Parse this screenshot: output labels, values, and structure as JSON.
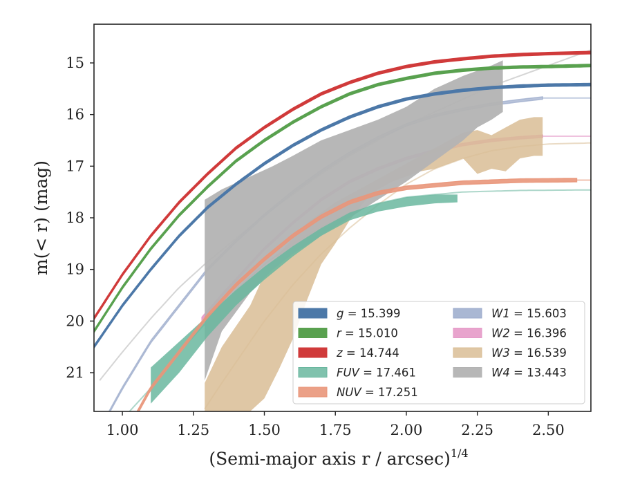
{
  "chart_data": {
    "type": "line",
    "xlabel": "(Semi-major axis r / arcsec)",
    "xlabel_sup": "1/4",
    "ylabel": "m(< r) (mag)",
    "xlim": [
      0.9,
      2.65
    ],
    "ylim": [
      21.75,
      14.25
    ],
    "y_inverted": true,
    "grid": false,
    "legend_position": "lower-right",
    "xticks": [
      1.0,
      1.25,
      1.5,
      1.75,
      2.0,
      2.25,
      2.5
    ],
    "xtick_labels": [
      "1.00",
      "1.25",
      "1.50",
      "1.75",
      "2.00",
      "2.25",
      "2.50"
    ],
    "yticks": [
      15,
      16,
      17,
      18,
      19,
      20,
      21
    ],
    "ytick_labels": [
      "15",
      "16",
      "17",
      "18",
      "19",
      "20",
      "21"
    ],
    "series": [
      {
        "name": "g = 15.399",
        "band": "g",
        "mag": 15.399,
        "color": "#4c78a8",
        "alpha": 1.0,
        "band_width": 0.05,
        "x_extent": [
          0.9,
          2.65
        ],
        "curve": {
          "x": [
            0.9,
            1.0,
            1.1,
            1.2,
            1.3,
            1.4,
            1.5,
            1.6,
            1.7,
            1.8,
            1.9,
            2.0,
            2.1,
            2.2,
            2.3,
            2.4,
            2.5,
            2.65
          ],
          "y": [
            20.5,
            19.7,
            19.0,
            18.35,
            17.8,
            17.35,
            16.95,
            16.6,
            16.3,
            16.05,
            15.85,
            15.7,
            15.6,
            15.53,
            15.48,
            15.45,
            15.43,
            15.42
          ]
        }
      },
      {
        "name": "r = 15.010",
        "band": "r",
        "mag": 15.01,
        "color": "#59a14f",
        "alpha": 1.0,
        "band_width": 0.05,
        "x_extent": [
          0.9,
          2.65
        ],
        "curve": {
          "x": [
            0.9,
            1.0,
            1.1,
            1.2,
            1.3,
            1.4,
            1.5,
            1.6,
            1.7,
            1.8,
            1.9,
            2.0,
            2.1,
            2.2,
            2.3,
            2.4,
            2.5,
            2.65
          ],
          "y": [
            20.2,
            19.35,
            18.6,
            17.95,
            17.4,
            16.9,
            16.5,
            16.15,
            15.85,
            15.6,
            15.42,
            15.3,
            15.2,
            15.14,
            15.1,
            15.08,
            15.07,
            15.05
          ]
        }
      },
      {
        "name": "z = 14.744",
        "band": "z",
        "mag": 14.744,
        "color": "#d03a3a",
        "alpha": 1.0,
        "band_width": 0.05,
        "x_extent": [
          0.9,
          2.65
        ],
        "curve": {
          "x": [
            0.9,
            1.0,
            1.1,
            1.2,
            1.3,
            1.4,
            1.5,
            1.6,
            1.7,
            1.8,
            1.9,
            2.0,
            2.1,
            2.2,
            2.3,
            2.4,
            2.5,
            2.65
          ],
          "y": [
            19.95,
            19.1,
            18.35,
            17.7,
            17.15,
            16.65,
            16.25,
            15.9,
            15.6,
            15.38,
            15.2,
            15.07,
            14.98,
            14.92,
            14.87,
            14.84,
            14.82,
            14.8
          ]
        }
      },
      {
        "name": "FUV = 17.461",
        "band": "FUV",
        "mag": 17.461,
        "color": "#6ab79f",
        "alpha": 0.85,
        "x": [
          1.1,
          1.2,
          1.3,
          1.4,
          1.5,
          1.6,
          1.7,
          1.8,
          1.9,
          2.0,
          2.1,
          2.18
        ],
        "y_upper": [
          20.9,
          20.4,
          19.9,
          19.4,
          18.95,
          18.55,
          18.2,
          17.9,
          17.72,
          17.6,
          17.55,
          17.55
        ],
        "y_lower": [
          21.6,
          21.0,
          20.3,
          19.7,
          19.2,
          18.75,
          18.35,
          18.05,
          17.88,
          17.78,
          17.72,
          17.7
        ],
        "curve": {
          "x": [
            1.0,
            1.1,
            1.2,
            1.3,
            1.4,
            1.5,
            1.6,
            1.7,
            1.8,
            1.9,
            2.0,
            2.2,
            2.4,
            2.65
          ],
          "y": [
            21.9,
            21.3,
            20.6,
            20.0,
            19.4,
            18.9,
            18.5,
            18.18,
            17.9,
            17.72,
            17.6,
            17.5,
            17.47,
            17.46
          ]
        }
      },
      {
        "name": "NUV = 17.251",
        "band": "NUV",
        "mag": 17.251,
        "color": "#e9967a",
        "alpha": 0.9,
        "band_width": 0.07,
        "x_extent": [
          1.05,
          2.6
        ],
        "curve": {
          "x": [
            1.05,
            1.1,
            1.2,
            1.3,
            1.4,
            1.5,
            1.6,
            1.7,
            1.8,
            1.9,
            2.0,
            2.2,
            2.4,
            2.6
          ],
          "y": [
            21.8,
            21.3,
            20.6,
            19.9,
            19.3,
            18.8,
            18.35,
            17.98,
            17.7,
            17.52,
            17.42,
            17.32,
            17.28,
            17.27
          ]
        },
        "ghost_extent": [
          2.6,
          2.65
        ]
      },
      {
        "name": "W1 = 15.603",
        "band": "W1",
        "mag": 15.603,
        "color": "#9aaacb",
        "alpha": 0.7,
        "band_width": 0.05,
        "x_extent": [
          0.95,
          2.48
        ],
        "curve": {
          "x": [
            0.95,
            1.0,
            1.1,
            1.2,
            1.3,
            1.4,
            1.5,
            1.6,
            1.7,
            1.8,
            1.9,
            2.0,
            2.1,
            2.2,
            2.3,
            2.4,
            2.48
          ],
          "y": [
            21.8,
            21.3,
            20.4,
            19.7,
            19.0,
            18.45,
            17.95,
            17.5,
            17.1,
            16.75,
            16.45,
            16.2,
            16.02,
            15.9,
            15.8,
            15.73,
            15.68
          ]
        },
        "ghost_extent": [
          2.48,
          2.65
        ]
      },
      {
        "name": "W2 = 16.396",
        "band": "W2",
        "mag": 16.396,
        "color": "#e59ac8",
        "alpha": 0.9,
        "band_width": 0.05,
        "x_extent": [
          1.28,
          2.48
        ],
        "curve": {
          "x": [
            1.28,
            1.35,
            1.4,
            1.5,
            1.6,
            1.7,
            1.8,
            1.9,
            2.0,
            2.1,
            2.2,
            2.3,
            2.4,
            2.48
          ],
          "y": [
            19.95,
            19.5,
            19.2,
            18.6,
            18.1,
            17.65,
            17.3,
            17.05,
            16.85,
            16.7,
            16.58,
            16.5,
            16.45,
            16.42
          ]
        },
        "ghost_extent": [
          2.48,
          2.65
        ]
      },
      {
        "name": "W3 = 16.539",
        "band": "W3",
        "mag": 16.539,
        "color": "#d9bd95",
        "alpha": 0.85,
        "x": [
          1.29,
          1.35,
          1.45,
          1.5,
          1.55,
          1.6,
          1.65,
          1.7,
          1.75,
          1.8,
          1.85,
          1.9,
          1.95,
          2.0,
          2.05,
          2.1,
          2.15,
          2.2,
          2.25,
          2.3,
          2.35,
          2.4,
          2.45,
          2.48
        ],
        "y_upper": [
          21.2,
          20.5,
          19.7,
          19.1,
          18.7,
          18.4,
          18.1,
          17.9,
          17.7,
          17.55,
          17.4,
          17.25,
          17.1,
          16.95,
          16.8,
          16.65,
          16.5,
          16.35,
          16.3,
          16.4,
          16.25,
          16.1,
          16.05,
          16.05
        ],
        "y_lower": [
          21.75,
          21.75,
          21.75,
          21.5,
          20.95,
          20.35,
          19.6,
          18.9,
          18.5,
          18.05,
          17.7,
          17.45,
          17.3,
          17.2,
          17.1,
          17.05,
          16.95,
          16.85,
          17.15,
          17.05,
          17.1,
          16.85,
          16.8,
          16.8
        ],
        "curve": {
          "x": [
            1.29,
            1.35,
            1.4,
            1.5,
            1.6,
            1.7,
            1.8,
            1.9,
            2.0,
            2.1,
            2.2,
            2.3,
            2.4,
            2.5,
            2.65
          ],
          "y": [
            21.7,
            21.2,
            20.8,
            20.0,
            19.3,
            18.7,
            18.2,
            17.75,
            17.35,
            17.05,
            16.85,
            16.7,
            16.62,
            16.57,
            16.55
          ]
        }
      },
      {
        "name": "W4 = 13.443",
        "band": "W4",
        "mag": 13.443,
        "color": "#b3b3b3",
        "alpha": 0.95,
        "x": [
          1.29,
          1.35,
          1.45,
          1.53,
          1.6,
          1.7,
          1.8,
          1.9,
          2.0,
          2.1,
          2.2,
          2.25,
          2.3,
          2.34
        ],
        "y_upper": [
          17.65,
          17.45,
          17.2,
          17.0,
          16.8,
          16.5,
          16.3,
          16.1,
          15.85,
          15.5,
          15.25,
          15.15,
          15.05,
          14.95
        ],
        "y_lower": [
          21.15,
          20.2,
          19.45,
          19.0,
          18.7,
          18.35,
          18.0,
          17.65,
          17.3,
          16.9,
          16.5,
          16.25,
          16.1,
          15.95
        ],
        "curve": {
          "x": [
            0.92,
            1.0,
            1.1,
            1.2,
            1.3,
            1.4,
            1.5,
            1.6,
            1.7,
            1.8,
            1.9,
            2.0,
            2.1,
            2.2,
            2.3,
            2.4,
            2.5,
            2.65
          ],
          "y": [
            21.15,
            20.6,
            19.95,
            19.35,
            18.85,
            18.4,
            17.95,
            17.55,
            17.15,
            16.8,
            16.5,
            16.2,
            15.95,
            15.7,
            15.45,
            15.25,
            15.05,
            14.75
          ]
        }
      }
    ]
  },
  "legend": [
    {
      "label": "g = 15.399",
      "symbol": "g",
      "value": "15.399",
      "color": "#4c78a8"
    },
    {
      "label": "r = 15.010",
      "symbol": "r",
      "value": "15.010",
      "color": "#59a14f"
    },
    {
      "label": "z = 14.744",
      "symbol": "z",
      "value": "14.744",
      "color": "#d03a3a"
    },
    {
      "label": "FUV = 17.461",
      "symbol": "FUV",
      "value": "17.461",
      "color": "#6ab79f"
    },
    {
      "label": "NUV = 17.251",
      "symbol": "NUV",
      "value": "17.251",
      "color": "#e9967a"
    },
    {
      "label": "W1 = 15.603",
      "symbol": "W1",
      "value": "15.603",
      "color": "#9aaacb"
    },
    {
      "label": "W2 = 16.396",
      "symbol": "W2",
      "value": "16.396",
      "color": "#e59ac8"
    },
    {
      "label": "W3 = 16.539",
      "symbol": "W3",
      "value": "16.539",
      "color": "#d9bd95"
    },
    {
      "label": "W4 = 13.443",
      "symbol": "W4",
      "value": "13.443",
      "color": "#b3b3b3"
    }
  ]
}
